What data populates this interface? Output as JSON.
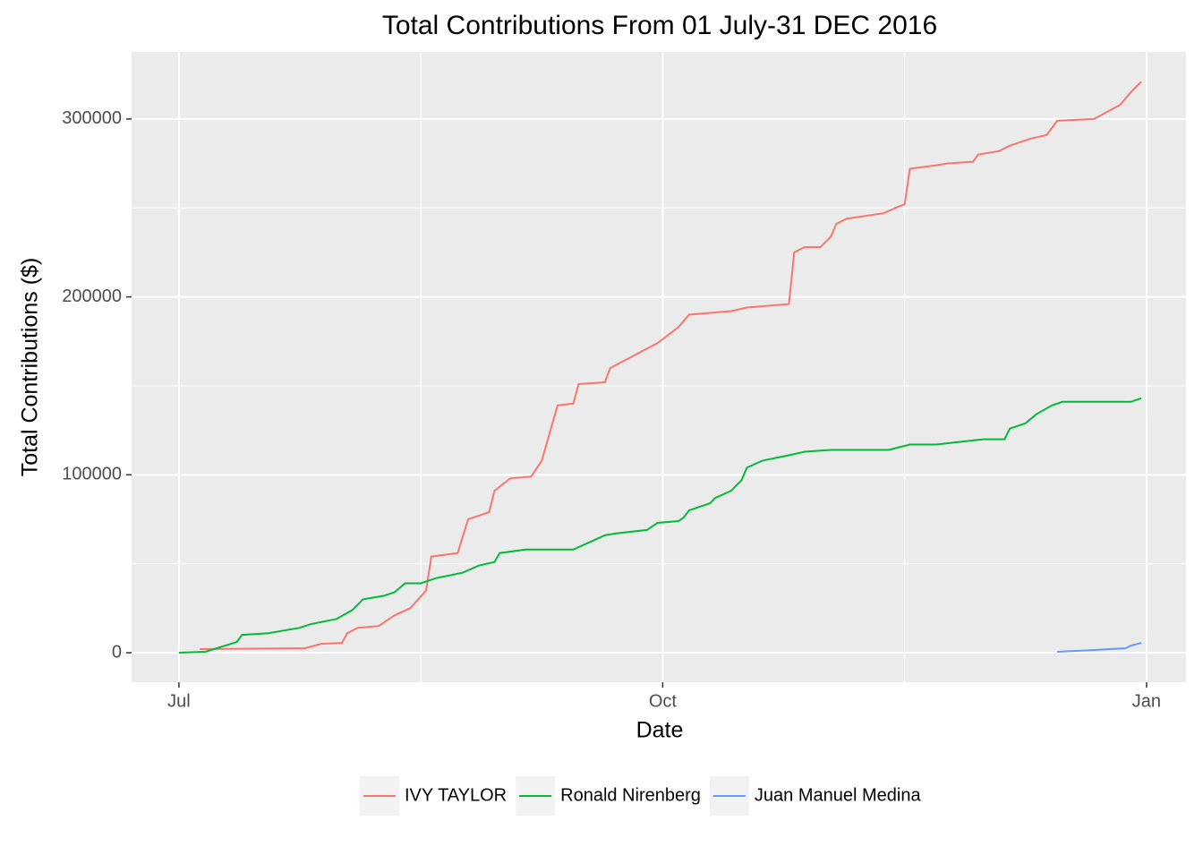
{
  "chart_data": {
    "type": "line",
    "title": "Total Contributions From 01 July-31 DEC 2016",
    "x_label": "Date",
    "y_label": "Total Contributions ($)",
    "series": [
      {
        "name": "IVY TAYLOR",
        "color": "#f8766d",
        "x": [
          4,
          24,
          27,
          31,
          32,
          34,
          38,
          41,
          44,
          47,
          48,
          53,
          55,
          59,
          60,
          63,
          67,
          69,
          72,
          75,
          76,
          81,
          82,
          91,
          95,
          97,
          105,
          108,
          116,
          117,
          119,
          122,
          124,
          125,
          127,
          134,
          137,
          138,
          139,
          144,
          146,
          151,
          152,
          156,
          158,
          160,
          162,
          165,
          167,
          174,
          179,
          181,
          183
        ],
        "values": [
          2000,
          2500,
          5000,
          5500,
          11000,
          14000,
          15000,
          21000,
          25000,
          35000,
          54000,
          56000,
          75000,
          79000,
          91000,
          98000,
          99000,
          108000,
          139000,
          140000,
          151000,
          152000,
          160000,
          174000,
          183000,
          190000,
          192000,
          194000,
          196000,
          225000,
          228000,
          228000,
          234000,
          241000,
          244000,
          247000,
          251000,
          252000,
          272000,
          274000,
          275000,
          276000,
          280000,
          282000,
          285000,
          287000,
          289000,
          291000,
          299000,
          300000,
          308000,
          315000,
          321000
        ]
      },
      {
        "name": "Ronald Nirenberg",
        "color": "#00ba38",
        "x": [
          0,
          5,
          11,
          12,
          17,
          20,
          23,
          25,
          30,
          33,
          35,
          39,
          41,
          43,
          46,
          49,
          54,
          57,
          60,
          61,
          66,
          75,
          78,
          81,
          83,
          89,
          91,
          95,
          96,
          97,
          101,
          102,
          105,
          107,
          108,
          111,
          116,
          119,
          124,
          135,
          139,
          144,
          147,
          153,
          157,
          158,
          161,
          163,
          166,
          168,
          181,
          183
        ],
        "values": [
          0,
          500,
          6000,
          10000,
          11000,
          12500,
          14000,
          16000,
          19000,
          24000,
          30000,
          32000,
          34000,
          39000,
          39000,
          42000,
          45000,
          49000,
          51000,
          56000,
          58000,
          58000,
          62000,
          66000,
          67000,
          69000,
          73000,
          74000,
          76000,
          80000,
          84000,
          87000,
          91000,
          97000,
          104000,
          108000,
          111000,
          113000,
          114000,
          114000,
          117000,
          117000,
          118000,
          120000,
          120000,
          126000,
          129000,
          134000,
          139000,
          141000,
          141000,
          143000
        ]
      },
      {
        "name": "Juan Manuel Medina",
        "color": "#619cff",
        "x": [
          167,
          174,
          180,
          181,
          183
        ],
        "values": [
          500,
          1500,
          2500,
          4000,
          5500
        ]
      }
    ],
    "xlim": [
      -9,
      191.5
    ],
    "xticks": [
      {
        "value": 0,
        "label": "Jul"
      },
      {
        "value": 92,
        "label": "Oct"
      },
      {
        "value": 184,
        "label": "Jan"
      }
    ],
    "ylim": [
      -16600,
      337700
    ],
    "yticks": [
      0,
      100000,
      200000,
      300000
    ],
    "grid": true,
    "legend": "bottom"
  }
}
